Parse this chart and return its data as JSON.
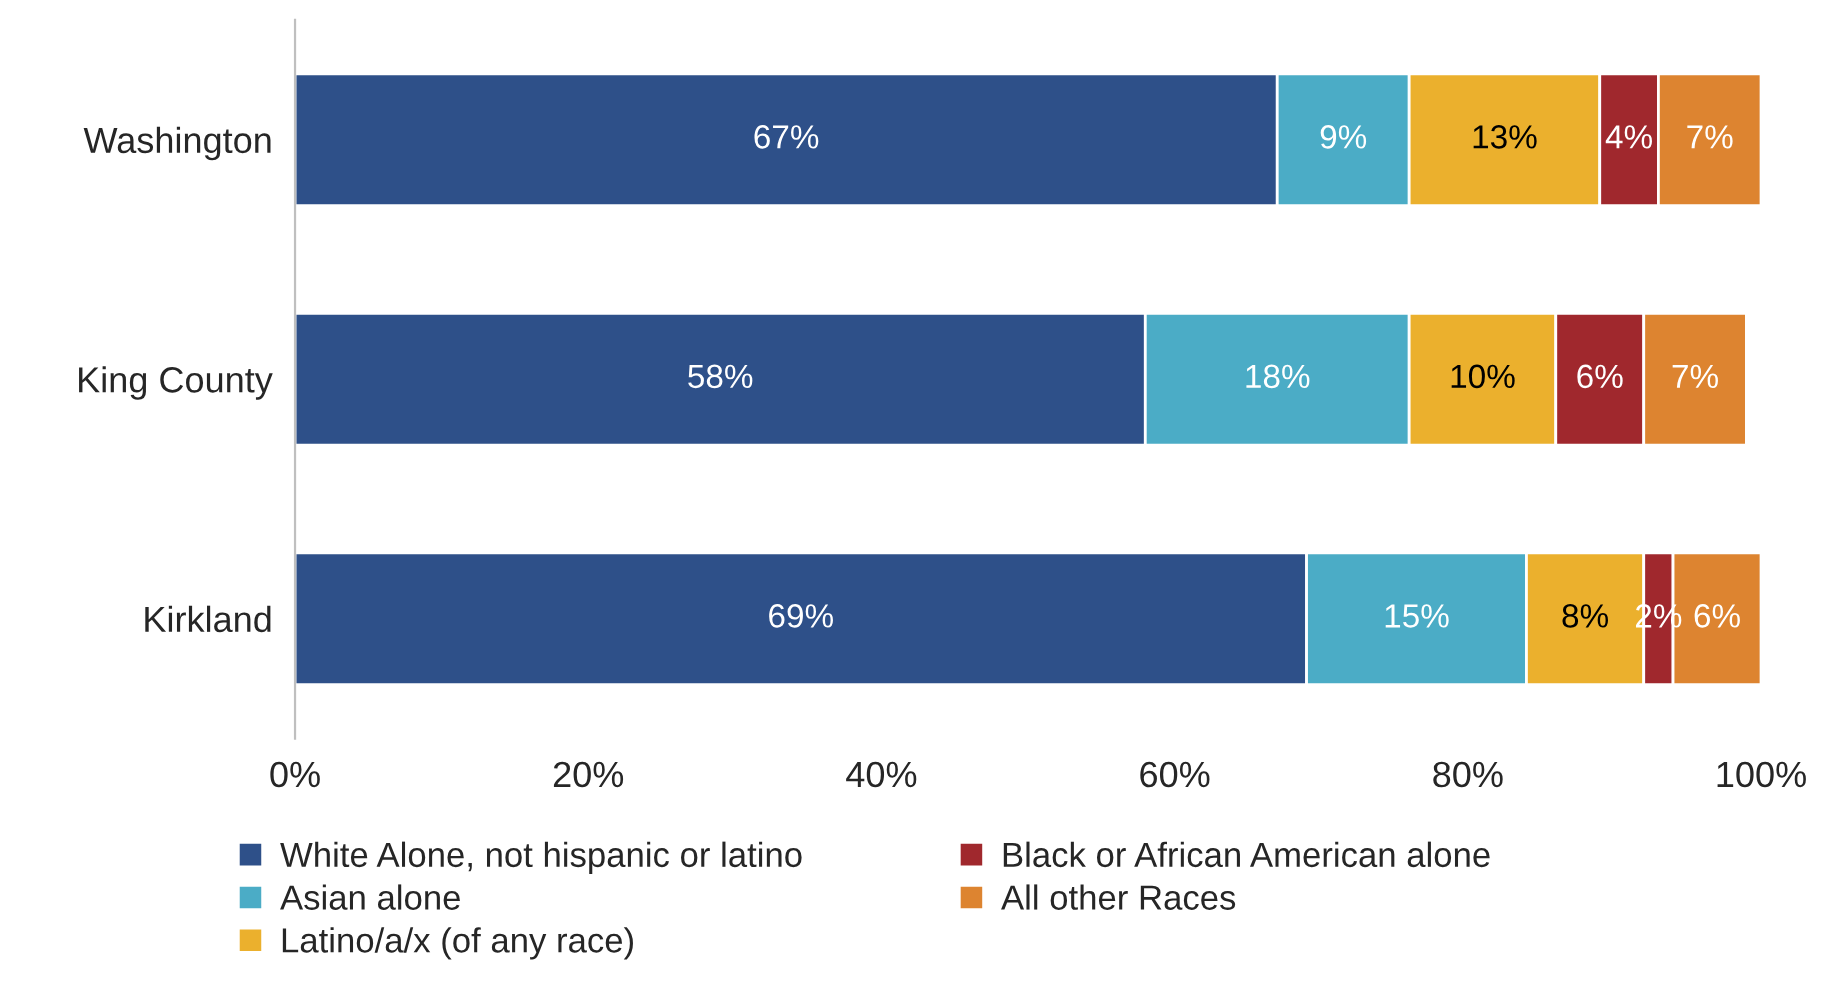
{
  "chart_data": {
    "type": "bar",
    "orientation": "horizontal",
    "stacked": true,
    "categories": [
      "Washington",
      "King County",
      "Kirkland"
    ],
    "series": [
      {
        "name": "White Alone, not hispanic or latino",
        "color": "#2e5089",
        "values": [
          67,
          58,
          69
        ],
        "value_labels": [
          "67%",
          "58%",
          "69%"
        ]
      },
      {
        "name": "Asian alone",
        "color": "#4bacc6",
        "values": [
          9,
          18,
          15
        ],
        "value_labels": [
          "9%",
          "18%",
          "15%"
        ]
      },
      {
        "name": "Latino/a/x (of any race)",
        "color": "#ebb02d",
        "values": [
          13,
          10,
          8
        ],
        "value_labels": [
          "13%",
          "10%",
          "8%"
        ]
      },
      {
        "name": "Black or African American alone",
        "color": "#a0282d",
        "values": [
          4,
          6,
          2
        ],
        "value_labels": [
          "4%",
          "6%",
          "2%"
        ]
      },
      {
        "name": "All other Races",
        "color": "#dd8430",
        "values": [
          7,
          7,
          6
        ],
        "value_labels": [
          "7%",
          "7%",
          "6%"
        ]
      }
    ],
    "xlim": [
      0,
      100
    ],
    "xticks": [
      {
        "value": 0,
        "label": "0%"
      },
      {
        "value": 20,
        "label": "20%"
      },
      {
        "value": 40,
        "label": "40%"
      },
      {
        "value": 60,
        "label": "60%"
      },
      {
        "value": 80,
        "label": "80%"
      },
      {
        "value": 100,
        "label": "100%"
      }
    ],
    "grid": false,
    "legend": "bottom"
  }
}
